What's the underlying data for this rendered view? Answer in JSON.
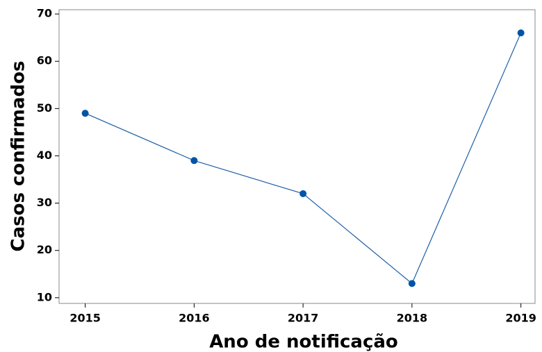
{
  "chart_data": {
    "type": "line",
    "x_label": "Ano de notificação",
    "y_label": "Casos confirmados",
    "x": [
      2015,
      2016,
      2017,
      2018,
      2019
    ],
    "series": [
      {
        "color": "#1f5fa8",
        "values": [
          49,
          39,
          32,
          13,
          66
        ]
      }
    ],
    "xlim": [
      2014.76,
      2019.13
    ],
    "xticks": [
      2015,
      2016,
      2017,
      2018,
      2019
    ],
    "ylim": [
      8.8,
      70.9
    ],
    "yticks": [
      10,
      20,
      30,
      40,
      50,
      60,
      70
    ],
    "grid": false
  }
}
